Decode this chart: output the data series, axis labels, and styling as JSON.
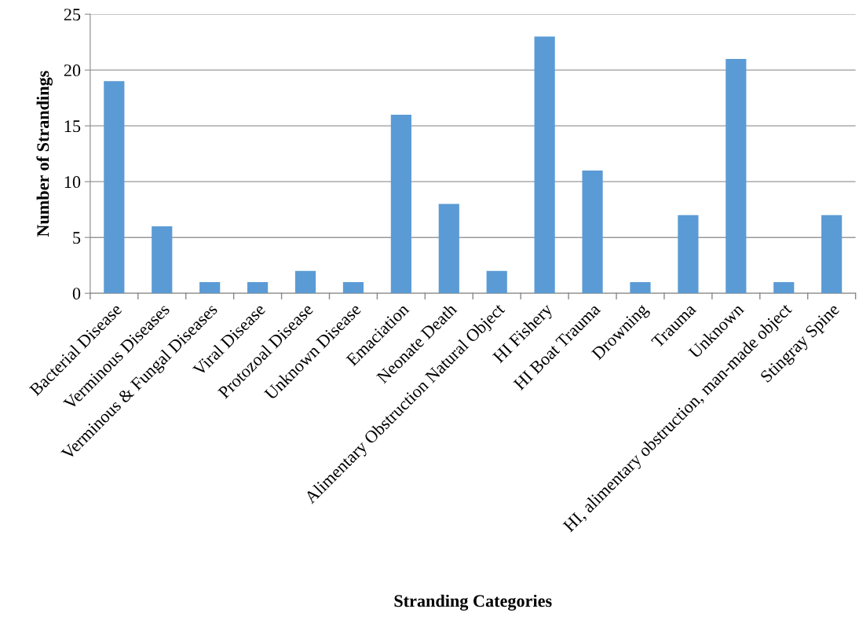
{
  "chart_data": {
    "type": "bar",
    "xlabel": "Stranding Categories",
    "ylabel": "Number of Strandings",
    "categories": [
      "Bacterial Disease",
      "Verminous Diseases",
      "Verminous & Fungal Diseases",
      "Viral Disease",
      "Protozoal Disease",
      "Unknown Disease",
      "Emaciation",
      "Neonate Death",
      "Alimentary Obstruction Natural Object",
      "HI Fishery",
      "HI Boat Trauma",
      "Drowning",
      "Trauma",
      "Unknown",
      "HI, alimentary obstruction, man-made object",
      "Stingray Spine"
    ],
    "values": [
      19,
      6,
      1,
      1,
      2,
      1,
      16,
      8,
      2,
      23,
      11,
      1,
      7,
      21,
      1,
      7
    ],
    "color": "#5b9bd5",
    "ylim": [
      0,
      25
    ],
    "yticks": [
      0,
      5,
      10,
      15,
      20,
      25
    ],
    "grid": "y",
    "legend": false
  }
}
